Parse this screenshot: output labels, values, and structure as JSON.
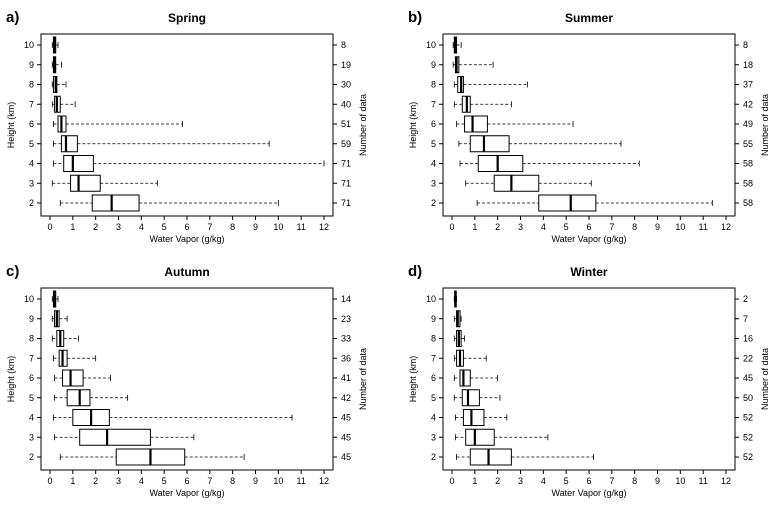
{
  "figure": {
    "xlabel": "Water Vapor (g/kg)",
    "ylabel_left": "Height (km)",
    "ylabel_right": "Number of data"
  },
  "chart_data": [
    {
      "type": "boxplot",
      "orientation": "horizontal",
      "letter": "a)",
      "title": "Spring",
      "xlabel": "Water Vapor (g/kg)",
      "ylabel": "Height (km)",
      "ylabel_right": "Number of data",
      "xlim": [
        0,
        12
      ],
      "xticks": [
        0,
        1,
        2,
        3,
        4,
        5,
        6,
        7,
        8,
        9,
        10,
        11,
        12
      ],
      "categories": [
        10,
        9,
        8,
        7,
        6,
        5,
        4,
        3,
        2
      ],
      "n": [
        8,
        19,
        30,
        40,
        51,
        59,
        71,
        71,
        71
      ],
      "boxes": [
        {
          "height": 10,
          "whisker_low": 0.1,
          "q1": 0.15,
          "median": 0.2,
          "q3": 0.25,
          "whisker_high": 0.35
        },
        {
          "height": 9,
          "whisker_low": 0.1,
          "q1": 0.15,
          "median": 0.2,
          "q3": 0.25,
          "whisker_high": 0.5
        },
        {
          "height": 8,
          "whisker_low": 0.1,
          "q1": 0.15,
          "median": 0.25,
          "q3": 0.3,
          "whisker_high": 0.7
        },
        {
          "height": 7,
          "whisker_low": 0.1,
          "q1": 0.2,
          "median": 0.3,
          "q3": 0.45,
          "whisker_high": 1.1
        },
        {
          "height": 6,
          "whisker_low": 0.15,
          "q1": 0.35,
          "median": 0.5,
          "q3": 0.7,
          "whisker_high": 5.8
        },
        {
          "height": 5,
          "whisker_low": 0.15,
          "q1": 0.5,
          "median": 0.7,
          "q3": 1.2,
          "whisker_high": 9.6
        },
        {
          "height": 4,
          "whisker_low": 0.15,
          "q1": 0.6,
          "median": 1.0,
          "q3": 1.9,
          "whisker_high": 12.0
        },
        {
          "height": 3,
          "whisker_low": 0.1,
          "q1": 0.9,
          "median": 1.25,
          "q3": 2.2,
          "whisker_high": 4.7
        },
        {
          "height": 2,
          "whisker_low": 0.45,
          "q1": 1.85,
          "median": 2.7,
          "q3": 3.9,
          "whisker_high": 10.0
        }
      ]
    },
    {
      "type": "boxplot",
      "orientation": "horizontal",
      "letter": "b)",
      "title": "Summer",
      "xlabel": "Water Vapor (g/kg)",
      "ylabel": "Height (km)",
      "ylabel_right": "Number of data",
      "xlim": [
        0,
        12
      ],
      "xticks": [
        0,
        1,
        2,
        3,
        4,
        5,
        6,
        7,
        8,
        9,
        10,
        11,
        12
      ],
      "categories": [
        10,
        9,
        8,
        7,
        6,
        5,
        4,
        3,
        2
      ],
      "n": [
        8,
        18,
        37,
        42,
        49,
        55,
        58,
        58,
        58
      ],
      "boxes": [
        {
          "height": 10,
          "whisker_low": 0.05,
          "q1": 0.1,
          "median": 0.15,
          "q3": 0.2,
          "whisker_high": 0.4
        },
        {
          "height": 9,
          "whisker_low": 0.05,
          "q1": 0.15,
          "median": 0.2,
          "q3": 0.3,
          "whisker_high": 1.8
        },
        {
          "height": 8,
          "whisker_low": 0.1,
          "q1": 0.25,
          "median": 0.4,
          "q3": 0.5,
          "whisker_high": 3.3
        },
        {
          "height": 7,
          "whisker_low": 0.1,
          "q1": 0.45,
          "median": 0.65,
          "q3": 0.8,
          "whisker_high": 2.6
        },
        {
          "height": 6,
          "whisker_low": 0.2,
          "q1": 0.55,
          "median": 0.9,
          "q3": 1.55,
          "whisker_high": 5.3
        },
        {
          "height": 5,
          "whisker_low": 0.3,
          "q1": 0.8,
          "median": 1.4,
          "q3": 2.5,
          "whisker_high": 7.4
        },
        {
          "height": 4,
          "whisker_low": 0.35,
          "q1": 1.15,
          "median": 2.0,
          "q3": 3.1,
          "whisker_high": 8.2
        },
        {
          "height": 3,
          "whisker_low": 0.6,
          "q1": 1.85,
          "median": 2.6,
          "q3": 3.8,
          "whisker_high": 6.1
        },
        {
          "height": 2,
          "whisker_low": 1.1,
          "q1": 3.8,
          "median": 5.2,
          "q3": 6.3,
          "whisker_high": 11.4
        }
      ]
    },
    {
      "type": "boxplot",
      "orientation": "horizontal",
      "letter": "c)",
      "title": "Autumn",
      "xlabel": "Water Vapor (g/kg)",
      "ylabel": "Height (km)",
      "ylabel_right": "Number of data",
      "xlim": [
        0,
        12
      ],
      "xticks": [
        0,
        1,
        2,
        3,
        4,
        5,
        6,
        7,
        8,
        9,
        10,
        11,
        12
      ],
      "categories": [
        10,
        9,
        8,
        7,
        6,
        5,
        4,
        3,
        2
      ],
      "n": [
        14,
        23,
        33,
        36,
        41,
        42,
        45,
        45,
        45
      ],
      "boxes": [
        {
          "height": 10,
          "whisker_low": 0.1,
          "q1": 0.15,
          "median": 0.2,
          "q3": 0.25,
          "whisker_high": 0.35
        },
        {
          "height": 9,
          "whisker_low": 0.1,
          "q1": 0.2,
          "median": 0.3,
          "q3": 0.4,
          "whisker_high": 0.75
        },
        {
          "height": 8,
          "whisker_low": 0.1,
          "q1": 0.3,
          "median": 0.45,
          "q3": 0.6,
          "whisker_high": 1.25
        },
        {
          "height": 7,
          "whisker_low": 0.15,
          "q1": 0.4,
          "median": 0.55,
          "q3": 0.75,
          "whisker_high": 2.0
        },
        {
          "height": 6,
          "whisker_low": 0.2,
          "q1": 0.55,
          "median": 0.9,
          "q3": 1.45,
          "whisker_high": 2.65
        },
        {
          "height": 5,
          "whisker_low": 0.2,
          "q1": 0.75,
          "median": 1.3,
          "q3": 1.75,
          "whisker_high": 3.4
        },
        {
          "height": 4,
          "whisker_low": 0.15,
          "q1": 1.0,
          "median": 1.8,
          "q3": 2.6,
          "whisker_high": 10.6
        },
        {
          "height": 3,
          "whisker_low": 0.2,
          "q1": 1.3,
          "median": 2.5,
          "q3": 4.4,
          "whisker_high": 6.3
        },
        {
          "height": 2,
          "whisker_low": 0.45,
          "q1": 2.9,
          "median": 4.4,
          "q3": 5.9,
          "whisker_high": 8.5
        }
      ]
    },
    {
      "type": "boxplot",
      "orientation": "horizontal",
      "letter": "d)",
      "title": "Winter",
      "xlabel": "Water Vapor (g/kg)",
      "ylabel": "Height (km)",
      "ylabel_right": "Number of data",
      "xlim": [
        0,
        12
      ],
      "xticks": [
        0,
        1,
        2,
        3,
        4,
        5,
        6,
        7,
        8,
        9,
        10,
        11,
        12
      ],
      "categories": [
        10,
        9,
        8,
        7,
        6,
        5,
        4,
        3,
        2
      ],
      "n": [
        2,
        7,
        16,
        22,
        45,
        50,
        52,
        52,
        52
      ],
      "boxes": [
        {
          "height": 10,
          "whisker_low": 0.1,
          "q1": 0.12,
          "median": 0.15,
          "q3": 0.18,
          "whisker_high": 0.2
        },
        {
          "height": 9,
          "whisker_low": 0.1,
          "q1": 0.2,
          "median": 0.25,
          "q3": 0.35,
          "whisker_high": 0.4
        },
        {
          "height": 8,
          "whisker_low": 0.1,
          "q1": 0.2,
          "median": 0.3,
          "q3": 0.4,
          "whisker_high": 0.55
        },
        {
          "height": 7,
          "whisker_low": 0.1,
          "q1": 0.2,
          "median": 0.35,
          "q3": 0.5,
          "whisker_high": 1.5
        },
        {
          "height": 6,
          "whisker_low": 0.1,
          "q1": 0.35,
          "median": 0.5,
          "q3": 0.8,
          "whisker_high": 2.0
        },
        {
          "height": 5,
          "whisker_low": 0.1,
          "q1": 0.45,
          "median": 0.7,
          "q3": 1.2,
          "whisker_high": 2.1
        },
        {
          "height": 4,
          "whisker_low": 0.15,
          "q1": 0.5,
          "median": 0.85,
          "q3": 1.4,
          "whisker_high": 2.4
        },
        {
          "height": 3,
          "whisker_low": 0.15,
          "q1": 0.6,
          "median": 1.0,
          "q3": 1.85,
          "whisker_high": 4.2
        },
        {
          "height": 2,
          "whisker_low": 0.2,
          "q1": 0.8,
          "median": 1.6,
          "q3": 2.6,
          "whisker_high": 6.2
        }
      ]
    }
  ]
}
